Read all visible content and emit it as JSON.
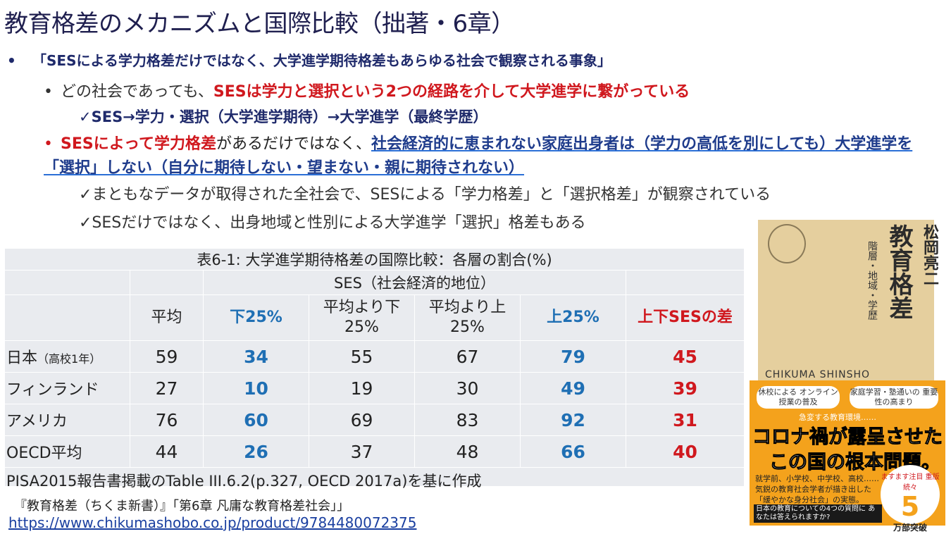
{
  "title": "教育格差のメカニズムと国際比較（拙著・6章）",
  "bullet1": "「SESによる学力格差だけではなく、大学進学期待格差もあらゆる社会で観察される事象」",
  "bullet2": {
    "prefix": "どの社会であっても、",
    "emph": "SESは学力と選択という2つの経路を介して大学進学に繋がっている"
  },
  "check1": "✓SES→学力・選択（大学進学期待）→大学進学（最終学歴）",
  "bullet3": {
    "red": "SESによって学力格差",
    "mid": "があるだけではなく、",
    "blue": "社会経済的に恵まれない家庭出身者は（学力の高低を別にしても）大学進学を「選択」しない（自分に期待しない・望まない・親に期待されない）"
  },
  "check2": "✓まともなデータが取得された全社会で、SESによる「学力格差」と「選択格差」が観察されている",
  "check3": "✓SESだけではなく、出身地域と性別による大学進学「選択」格差もある",
  "table": {
    "caption": "表6-1: 大学進学期待格差の国際比較：各層の割合(%)",
    "ses_header": "SES（社会経済的地位）",
    "headers": [
      "平均",
      "下25%",
      "平均より下25%",
      "平均より上25%",
      "上25%",
      "上下SESの差"
    ],
    "rows": [
      {
        "name": "日本",
        "note": "（高校1年）",
        "avg": "59",
        "low": "34",
        "below": "55",
        "above": "67",
        "high": "79",
        "diff": "45"
      },
      {
        "name": "フィンランド",
        "note": "",
        "avg": "27",
        "low": "10",
        "below": "19",
        "above": "30",
        "high": "49",
        "diff": "39"
      },
      {
        "name": "アメリカ",
        "note": "",
        "avg": "76",
        "low": "60",
        "below": "69",
        "above": "83",
        "high": "92",
        "diff": "31"
      },
      {
        "name": "OECD平均",
        "note": "",
        "avg": "44",
        "low": "26",
        "below": "37",
        "above": "48",
        "high": "66",
        "diff": "40"
      }
    ],
    "source": "PISA2015報告書掲載のTable III.6.2(p.327, OECD 2017a)を基に作成"
  },
  "reference": "『教育格差（ちくま新書）』「第6章 凡庸な教育格差社会」」",
  "url": "https://www.chikumashobo.co.jp/product/9784480072375",
  "book": {
    "title": "教育格差",
    "author": "松岡亮二",
    "subtitle": "階層・地域・学歴",
    "publisher": "CHIKUMA SHINSHO",
    "pill1": "休校による オンライン授業の普及",
    "pill2": "家庭学習・塾通いの 重要性の高まり",
    "small": "急変する教育環境……",
    "big1": "コロナ禍が露呈させた",
    "big2": "この国の根本問題。",
    "desc": "就学前、小学校、中学校、高校…… 気鋭の教育社会学者が描き出した 「緩やかな身分社会」の実態。",
    "box": "日本の教育についての4つの質問に あなたは答えられますか?",
    "circle_top": "ますます注目 重版続々",
    "circle_num": "5",
    "circle_unit": "万部突破"
  }
}
